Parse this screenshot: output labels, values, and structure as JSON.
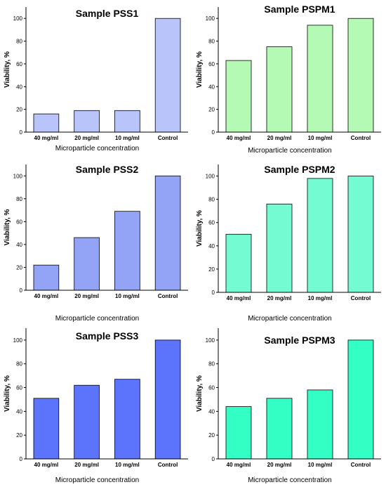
{
  "chart_data": [
    {
      "type": "bar",
      "title": "Sample PSS1",
      "ylabel": "Viability, %",
      "xlabel": "Microparticle concentration",
      "categories": [
        "40 mg/ml",
        "20 mg/ml",
        "10 mg/ml",
        "Control"
      ],
      "values": [
        16,
        19,
        19,
        100
      ],
      "ylim": [
        0,
        110
      ],
      "yticks": [
        0,
        20,
        40,
        60,
        80,
        100
      ],
      "color": "#b9c4fb"
    },
    {
      "type": "bar",
      "title": "Sample PSPM1",
      "ylabel": "Viability, %",
      "xlabel": "Microparticle concentration",
      "categories": [
        "40 mg/ml",
        "20 mg/ml",
        "10 mg/ml",
        "Control"
      ],
      "values": [
        63,
        75,
        94,
        100
      ],
      "ylim": [
        0,
        110
      ],
      "yticks": [
        0,
        20,
        40,
        60,
        80,
        100
      ],
      "color": "#b4f9b4"
    },
    {
      "type": "bar",
      "title": "Sample PSS2",
      "ylabel": "Viability, %",
      "xlabel": "Microparticle concentration",
      "categories": [
        "40 mg/ml",
        "20 mg/ml",
        "10 mg/ml",
        "Control"
      ],
      "values": [
        22,
        46,
        69,
        100
      ],
      "ylim": [
        0,
        110
      ],
      "yticks": [
        0,
        20,
        40,
        60,
        80,
        100
      ],
      "color": "#93a4f7"
    },
    {
      "type": "bar",
      "title": "Sample PSPM2",
      "ylabel": "Viability, %",
      "xlabel": "Microparticle concentration",
      "categories": [
        "40 mg/ml",
        "20 mg/ml",
        "10 mg/ml",
        "Control"
      ],
      "values": [
        50,
        76,
        98,
        100
      ],
      "ylim": [
        0,
        110
      ],
      "yticks": [
        0,
        20,
        40,
        60,
        80,
        100
      ],
      "color": "#74fbd2"
    },
    {
      "type": "bar",
      "title": "Sample PSS3",
      "ylabel": "Viability, %",
      "xlabel": "Microparticle concentration",
      "categories": [
        "40 mg/ml",
        "20 mg/ml",
        "10 mg/ml",
        "Control"
      ],
      "values": [
        51,
        62,
        67,
        100
      ],
      "ylim": [
        0,
        110
      ],
      "yticks": [
        0,
        20,
        40,
        60,
        80,
        100
      ],
      "color": "#5b74fb"
    },
    {
      "type": "bar",
      "title": "Sample PSPM3",
      "ylabel": "Viability, %",
      "xlabel": "Microparticle concentration",
      "categories": [
        "40 mg/ml",
        "20 mg/ml",
        "10 mg/ml",
        "Control"
      ],
      "values": [
        44,
        51,
        58,
        100
      ],
      "ylim": [
        0,
        110
      ],
      "yticks": [
        0,
        20,
        40,
        60,
        80,
        100
      ],
      "color": "#33ffc4"
    }
  ]
}
